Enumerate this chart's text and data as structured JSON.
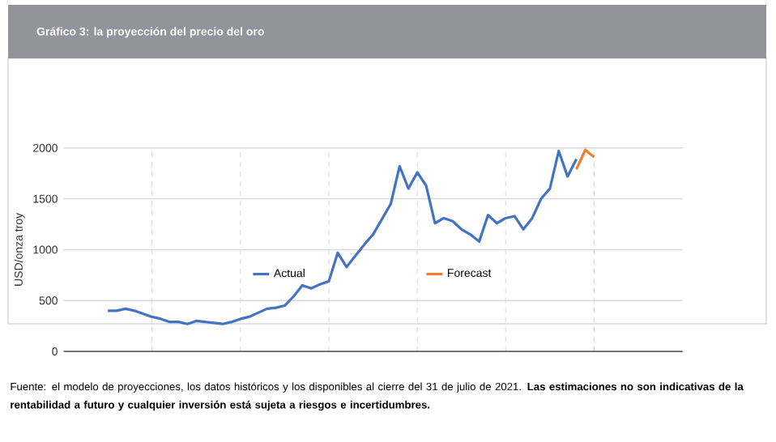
{
  "chart_data": {
    "type": "line",
    "title": "Gráfico 3: la proyección del precio del oro",
    "ylabel": "USD/onza troy",
    "categories": [
      null,
      null,
      null,
      null,
      null,
      null,
      null,
      null,
      null,
      null,
      null,
      null,
      null,
      null,
      null,
      null,
      null,
      null,
      null,
      null,
      null,
      null,
      null,
      null,
      null,
      null,
      null,
      null,
      null,
      null,
      null,
      null,
      null,
      null,
      null,
      null,
      null,
      null,
      null,
      null,
      null,
      null,
      null,
      null,
      null,
      null,
      null,
      null,
      null,
      null,
      null,
      null,
      null,
      null,
      null,
      null,
      null,
      null,
      null,
      null,
      null,
      null,
      null,
      null,
      null,
      null,
      null,
      null,
      null,
      null,
      null
    ],
    "series": [
      {
        "name": "Actual",
        "color": "#4472c4",
        "values": [
          null,
          null,
          null,
          null,
          null,
          400,
          400,
          420,
          400,
          370,
          340,
          320,
          290,
          290,
          270,
          300,
          290,
          280,
          270,
          290,
          320,
          340,
          380,
          420,
          430,
          450,
          540,
          650,
          620,
          660,
          690,
          970,
          830,
          940,
          1050,
          1150,
          1300,
          1450,
          1820,
          1600,
          1760,
          1630,
          1260,
          1310,
          1280,
          1200,
          1150,
          1080,
          1340,
          1260,
          1310,
          1330,
          1200,
          1310,
          1500,
          1600,
          1970,
          1720,
          1890,
          null,
          null,
          null,
          null,
          null,
          null,
          null,
          null,
          null,
          null,
          null,
          null
        ]
      },
      {
        "name": "Forecast",
        "color": "#ed7d31",
        "values": [
          null,
          null,
          null,
          null,
          null,
          null,
          null,
          null,
          null,
          null,
          null,
          null,
          null,
          null,
          null,
          null,
          null,
          null,
          null,
          null,
          null,
          null,
          null,
          null,
          null,
          null,
          null,
          null,
          null,
          null,
          null,
          null,
          null,
          null,
          null,
          null,
          null,
          null,
          null,
          null,
          null,
          null,
          null,
          null,
          null,
          null,
          null,
          null,
          null,
          null,
          null,
          null,
          null,
          null,
          null,
          null,
          null,
          null,
          1790,
          1980,
          1910,
          null,
          null,
          null,
          null,
          null,
          null,
          null,
          null,
          null,
          null
        ]
      }
    ],
    "ylim": [
      0,
      2000
    ],
    "yticks": [
      0,
      500,
      1000,
      1500,
      2000
    ],
    "grid": true,
    "legend": "center",
    "annotations": [
      "Fuente: el modelo de proyecciones, los datos históricos y los disponibles al cierre del 31 de julio de 2021. **Las estimaciones no son indicativas de la rentabilidad a futuro y cualquier inversión está sujeta a riesgos e incertidumbres.**"
    ]
  }
}
